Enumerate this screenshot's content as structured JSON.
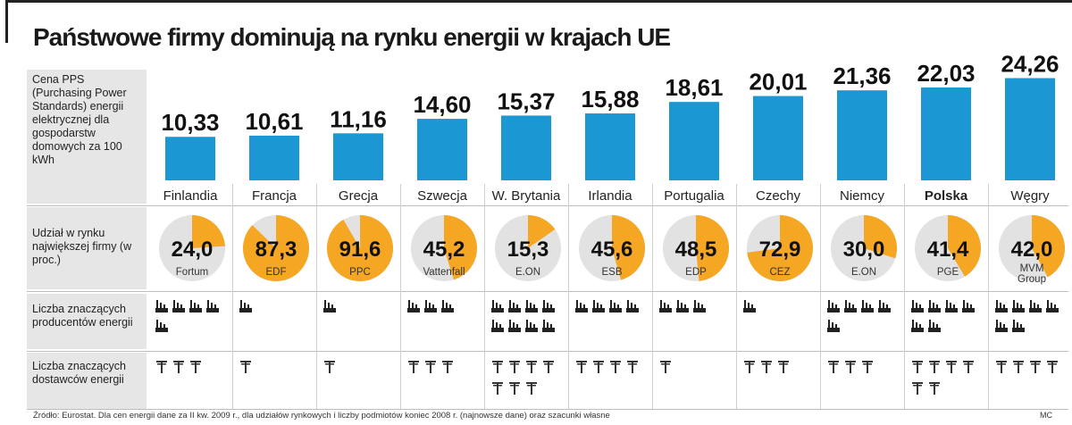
{
  "title": "Państwowe firmy dominują na rynku energii w krajach UE",
  "row_labels": {
    "price": "Cena PPS (Purchasing Power Standards) energii elektrycznej dla gospodarstw domowych za 100 kWh",
    "share": "Udział w rynku największej firmy (w proc.)",
    "producers": "Liczba znaczących producentów energii",
    "suppliers": "Liczba znaczących dostawców energii"
  },
  "colors": {
    "bar": "#1b98d3",
    "share": "#f5a623",
    "pie_bg": "#e2e2e2"
  },
  "icons": {
    "producer": "power-plant-icon",
    "supplier": "power-pylon-icon"
  },
  "chart_data": {
    "type": "bar",
    "categories": [
      "Finlandia",
      "Francja",
      "Grecja",
      "Szwecja",
      "W. Brytania",
      "Irlandia",
      "Portugalia",
      "Czechy",
      "Niemcy",
      "Polska",
      "Węgry"
    ],
    "highlight": "Polska",
    "series": [
      {
        "values": [
          10.33,
          10.61,
          11.16,
          14.6,
          15.37,
          15.88,
          18.61,
          20.01,
          21.36,
          22.03,
          24.26
        ],
        "labels": [
          "10,33",
          "10,61",
          "11,16",
          "14,60",
          "15,37",
          "15,88",
          "18,61",
          "20,01",
          "21,36",
          "22,03",
          "24,26"
        ]
      }
    ],
    "market_share": {
      "values": [
        24.0,
        87.3,
        91.6,
        45.2,
        15.3,
        45.6,
        48.5,
        72.9,
        30.0,
        41.4,
        42.0
      ],
      "labels": [
        "24,0",
        "87,3",
        "91,6",
        "45,2",
        "15,3",
        "45,6",
        "48,5",
        "72,9",
        "30,0",
        "41,4",
        "42,0"
      ],
      "companies": [
        "Fortum",
        "EDF",
        "PPC",
        "Vattenfall",
        "E.ON",
        "ESB",
        "EDP",
        "CEZ",
        "E.ON",
        "PGE",
        "MVM Group"
      ]
    },
    "producers_count": [
      5,
      1,
      1,
      3,
      8,
      4,
      3,
      1,
      5,
      6,
      6
    ],
    "suppliers_count": [
      3,
      1,
      1,
      3,
      7,
      4,
      1,
      3,
      3,
      6,
      4
    ]
  },
  "source": "Źródło: Eurostat. Dla cen energii dane za II kw. 2009 r., dla udziałów rynkowych i liczby podmiotów koniec 2008 r. (najnowsze dane) oraz szacunki własne",
  "credit": "MC"
}
